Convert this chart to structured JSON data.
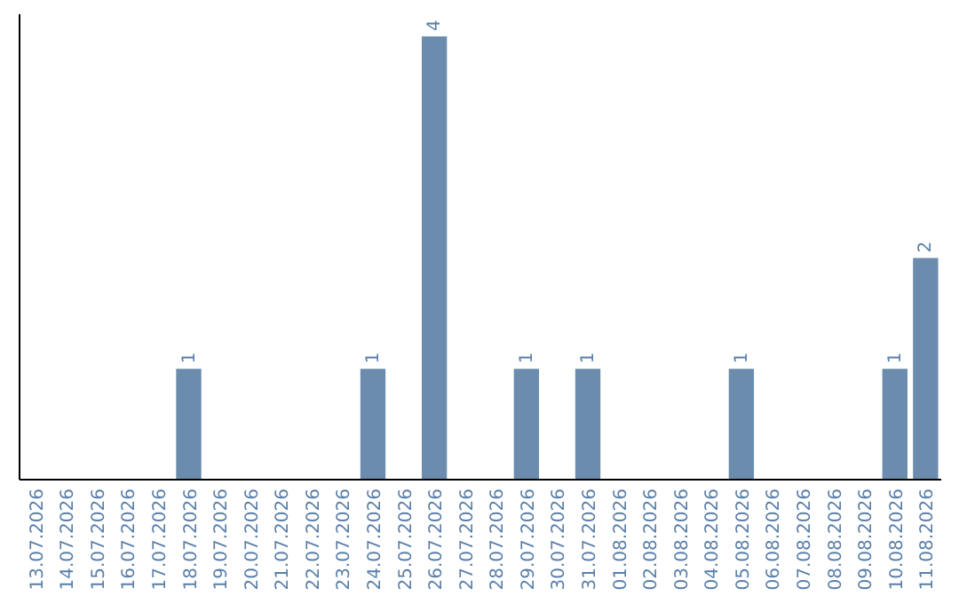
{
  "chart_data": {
    "type": "bar",
    "categories": [
      "13.07.2026",
      "14.07.2026",
      "15.07.2026",
      "16.07.2026",
      "17.07.2026",
      "18.07.2026",
      "19.07.2026",
      "20.07.2026",
      "21.07.2026",
      "22.07.2026",
      "23.07.2026",
      "24.07.2026",
      "25.07.2026",
      "26.07.2026",
      "27.07.2026",
      "28.07.2026",
      "29.07.2026",
      "30.07.2026",
      "31.07.2026",
      "01.08.2026",
      "02.08.2026",
      "03.08.2026",
      "04.08.2026",
      "05.08.2026",
      "06.08.2026",
      "07.08.2026",
      "08.08.2026",
      "09.08.2026",
      "10.08.2026",
      "11.08.2026"
    ],
    "values": [
      0,
      0,
      0,
      0,
      0,
      1,
      0,
      0,
      0,
      0,
      0,
      1,
      0,
      4,
      0,
      0,
      1,
      0,
      1,
      0,
      0,
      0,
      0,
      1,
      0,
      0,
      0,
      0,
      1,
      2
    ],
    "color": "#6b8cad",
    "value_labels": [
      null,
      null,
      null,
      null,
      null,
      "1",
      null,
      null,
      null,
      null,
      null,
      "1",
      null,
      "4",
      null,
      null,
      "1",
      null,
      "1",
      null,
      null,
      null,
      null,
      "1",
      null,
      null,
      null,
      null,
      "1",
      "2"
    ]
  }
}
